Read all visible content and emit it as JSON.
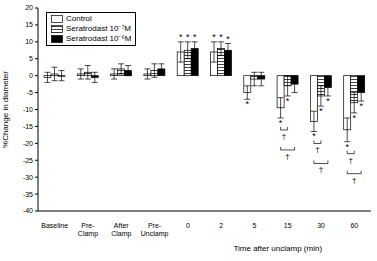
{
  "chart_data": {
    "type": "bar",
    "y_label": "%Change in diameter",
    "x_label": "Time after unclamp (min)",
    "categories": [
      "Baseline",
      "Pre-Clamp",
      "After Clamp",
      "Pre-Unclamp",
      "0",
      "2",
      "5",
      "15",
      "30",
      "60"
    ],
    "series": [
      {
        "name": "Control",
        "color": "#ffffff",
        "values": [
          -0.5,
          0.5,
          0.5,
          0.5,
          7,
          7,
          -5,
          -9.5,
          -13.5,
          -16
        ],
        "errors": [
          1.5,
          1.5,
          1.5,
          1.5,
          3,
          3,
          2,
          3,
          3,
          3.5
        ],
        "significance": [
          null,
          null,
          null,
          null,
          "*",
          "*",
          "*",
          "*",
          "*",
          "*"
        ]
      },
      {
        "name": "Seratrodast 10⁻⁷M",
        "color": "#444444",
        "values": [
          0.5,
          1,
          2,
          1.5,
          7.5,
          8,
          -1,
          -3,
          -6,
          -8
        ],
        "errors": [
          2,
          2,
          1.5,
          2,
          2.5,
          2,
          2,
          3,
          3,
          3
        ],
        "significance": [
          null,
          null,
          null,
          null,
          "*",
          "*",
          null,
          "*",
          "*",
          "*"
        ]
      },
      {
        "name": "Seratrodast 10⁻⁶M",
        "color": "#000000",
        "values": [
          0,
          -0.5,
          1.5,
          2,
          8,
          7.5,
          -1,
          -2.5,
          -3.5,
          -5
        ],
        "errors": [
          1.5,
          1.5,
          1.5,
          1.5,
          2,
          2,
          2,
          2.5,
          2.5,
          2.5
        ],
        "significance": [
          null,
          null,
          null,
          null,
          "*",
          "*",
          null,
          null,
          "*",
          "*"
        ]
      }
    ],
    "comparisons": [
      {
        "category": "15",
        "series": [
          "Control",
          "Seratrodast 10⁻⁷M"
        ],
        "text": "†"
      },
      {
        "category": "15",
        "series": [
          "Control",
          "Seratrodast 10⁻⁶M"
        ],
        "text": "†"
      },
      {
        "category": "30",
        "series": [
          "Control",
          "Seratrodast 10⁻⁷M"
        ],
        "text": "†"
      },
      {
        "category": "30",
        "series": [
          "Control",
          "Seratrodast 10⁻⁶M"
        ],
        "text": "†"
      },
      {
        "category": "60",
        "series": [
          "Control",
          "Seratrodast 10⁻⁷M"
        ],
        "text": "†"
      },
      {
        "category": "60",
        "series": [
          "Control",
          "Seratrodast 10⁻⁶M"
        ],
        "text": "†"
      }
    ],
    "ylim": [
      -40,
      20
    ],
    "yticks": [
      -40,
      -35,
      -30,
      -25,
      -20,
      -15,
      -10,
      -5,
      0,
      5,
      10,
      15,
      20
    ],
    "legend": "upper left",
    "grid": false
  }
}
